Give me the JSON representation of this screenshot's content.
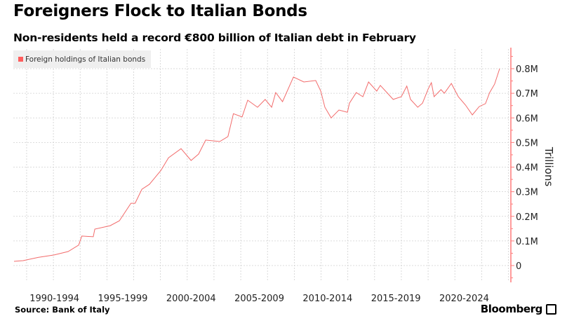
{
  "header": {
    "title": "Foreigners Flock to Italian Bonds",
    "subtitle": "Non-residents held a record €800 billion of Italian debt in February"
  },
  "footer": {
    "source": "Source: Bank of Italy",
    "brand": "Bloomberg"
  },
  "colors": {
    "series": "#f26b6b",
    "axis": "#ff7b7b",
    "grid": "#d0d0d0",
    "legend_bg": "#efefef"
  },
  "chart_data": {
    "type": "line",
    "title": "Foreigners Flock to Italian Bonds",
    "ylabel": "Trillions",
    "xlabel": "",
    "legend": {
      "entries": [
        "Foreign holdings of Italian bonds"
      ],
      "placement": "top-left"
    },
    "grid": true,
    "xlim": [
      1989.5,
      2025.9
    ],
    "ylim": [
      -0.06,
      0.88
    ],
    "x_tick_labels": [
      {
        "label": "1990-1994",
        "at": 1992.5
      },
      {
        "label": "1995-1999",
        "at": 1997.5
      },
      {
        "label": "2000-2004",
        "at": 2002.5
      },
      {
        "label": "2005-2009",
        "at": 2007.5
      },
      {
        "label": "2010-2014",
        "at": 2012.5
      },
      {
        "label": "2015-2019",
        "at": 2017.5
      },
      {
        "label": "2020-2024",
        "at": 2022.5
      }
    ],
    "y_ticks": [
      {
        "label": "0",
        "value": 0
      },
      {
        "label": "0.1M",
        "value": 0.1
      },
      {
        "label": "0.2M",
        "value": 0.2
      },
      {
        "label": "0.3M",
        "value": 0.3
      },
      {
        "label": "0.4M",
        "value": 0.4
      },
      {
        "label": "0.5M",
        "value": 0.5
      },
      {
        "label": "0.6M",
        "value": 0.6
      },
      {
        "label": "0.7M",
        "value": 0.7
      },
      {
        "label": "0.8M",
        "value": 0.8
      }
    ],
    "series": [
      {
        "name": "Foreign holdings of Italian bonds",
        "x": [
          1989.54,
          1990.2,
          1991.3,
          1992.47,
          1993.5,
          1994.27,
          1994.5,
          1995.34,
          1995.45,
          1996.58,
          1997.25,
          1998.1,
          1998.4,
          1998.9,
          1999.45,
          2000.3,
          2000.85,
          2001.77,
          2002.5,
          2003.05,
          2003.57,
          2004.6,
          2005.2,
          2005.6,
          2006.24,
          2006.65,
          2007.37,
          2007.93,
          2008.4,
          2008.7,
          2009.2,
          2010.0,
          2010.76,
          2011.63,
          2012.0,
          2012.3,
          2012.76,
          2013.33,
          2013.95,
          2014.1,
          2014.6,
          2015.08,
          2015.5,
          2016.1,
          2016.36,
          2017.3,
          2017.9,
          2018.3,
          2018.57,
          2019.1,
          2019.45,
          2019.86,
          2020.1,
          2020.3,
          2020.8,
          2021.05,
          2021.56,
          2022.07,
          2022.6,
          2023.1,
          2023.6,
          2024.06,
          2024.37,
          2024.73,
          2025.1
        ],
        "values": [
          0.017,
          0.02,
          0.033,
          0.043,
          0.057,
          0.083,
          0.12,
          0.117,
          0.148,
          0.162,
          0.182,
          0.253,
          0.253,
          0.31,
          0.33,
          0.387,
          0.438,
          0.475,
          0.427,
          0.453,
          0.51,
          0.504,
          0.524,
          0.617,
          0.604,
          0.672,
          0.643,
          0.675,
          0.643,
          0.703,
          0.666,
          0.766,
          0.746,
          0.752,
          0.709,
          0.643,
          0.6,
          0.632,
          0.623,
          0.66,
          0.703,
          0.686,
          0.746,
          0.709,
          0.732,
          0.675,
          0.686,
          0.729,
          0.675,
          0.643,
          0.66,
          0.717,
          0.743,
          0.686,
          0.715,
          0.7,
          0.74,
          0.686,
          0.652,
          0.612,
          0.646,
          0.658,
          0.703,
          0.737,
          0.8
        ]
      }
    ]
  }
}
